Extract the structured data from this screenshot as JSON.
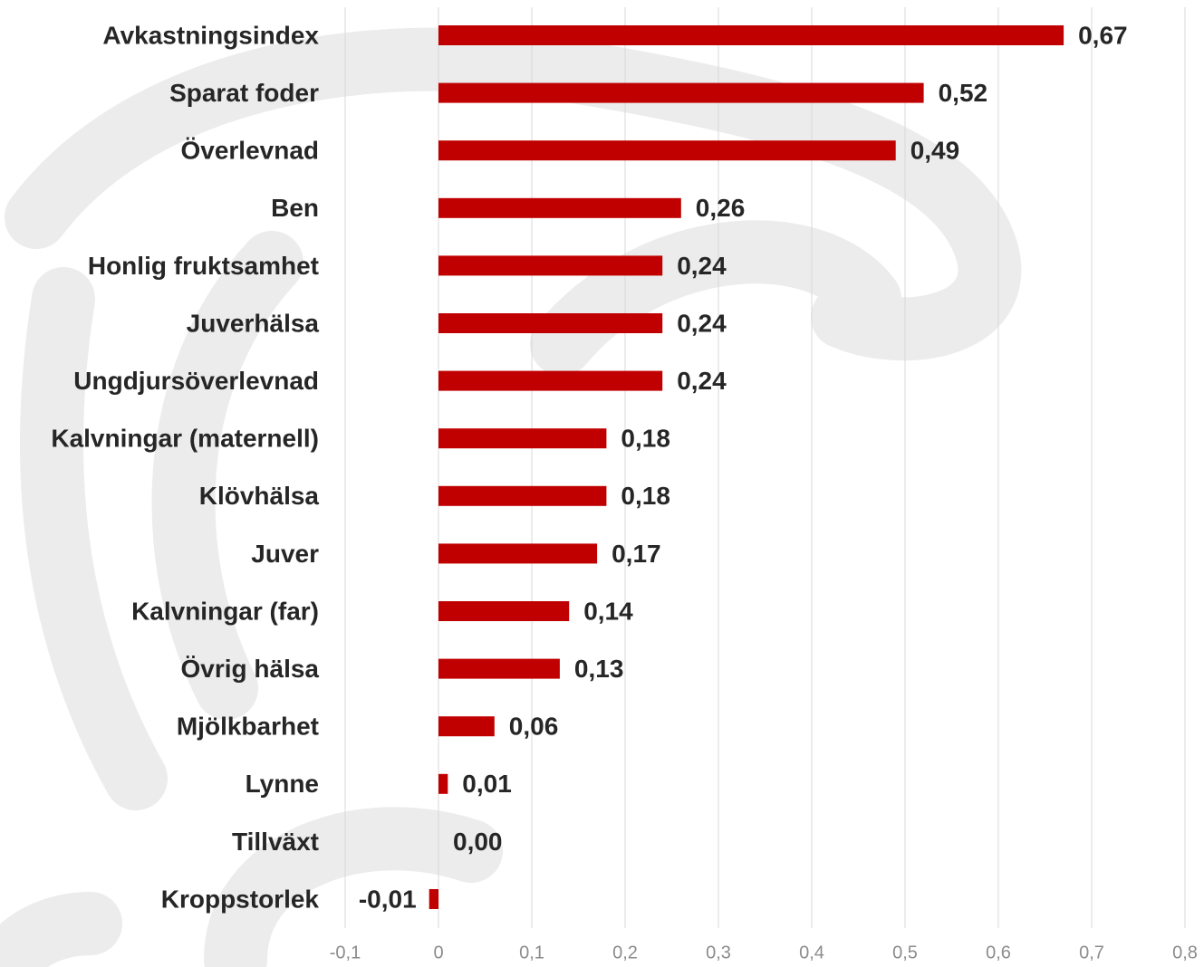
{
  "chart_data": {
    "type": "bar",
    "orientation": "horizontal",
    "categories": [
      "Avkastningsindex",
      "Sparat foder",
      "Överlevnad",
      "Ben",
      "Honlig fruktsamhet",
      "Juverhälsa",
      "Ungdjursöverlevnad",
      "Kalvningar (maternell)",
      "Klövhälsa",
      "Juver",
      "Kalvningar (far)",
      "Övrig hälsa",
      "Mjölkbarhet",
      "Lynne",
      "Tillväxt",
      "Kroppstorlek"
    ],
    "values": [
      0.67,
      0.52,
      0.49,
      0.26,
      0.24,
      0.24,
      0.24,
      0.18,
      0.18,
      0.17,
      0.14,
      0.13,
      0.06,
      0.01,
      0.0,
      -0.01
    ],
    "value_labels": [
      "0,67",
      "0,52",
      "0,49",
      "0,26",
      "0,24",
      "0,24",
      "0,24",
      "0,18",
      "0,18",
      "0,17",
      "0,14",
      "0,13",
      "0,06",
      "0,01",
      "0,00",
      "-0,01"
    ],
    "color": "#c00000",
    "xlim": [
      -0.1,
      0.8
    ],
    "xticks": [
      {
        "value": -0.1,
        "label": "-0,1"
      },
      0,
      {
        "value": 0.1,
        "label": "0,1"
      },
      {
        "value": 0.2,
        "label": "0,2"
      },
      {
        "value": 0.3,
        "label": "0,3"
      },
      {
        "value": 0.4,
        "label": "0,4"
      },
      {
        "value": 0.5,
        "label": "0,5"
      },
      {
        "value": 0.6,
        "label": "0,6"
      },
      {
        "value": 0.7,
        "label": "0,7"
      },
      {
        "value": 0.8,
        "label": "0,8"
      }
    ],
    "grid": true
  }
}
